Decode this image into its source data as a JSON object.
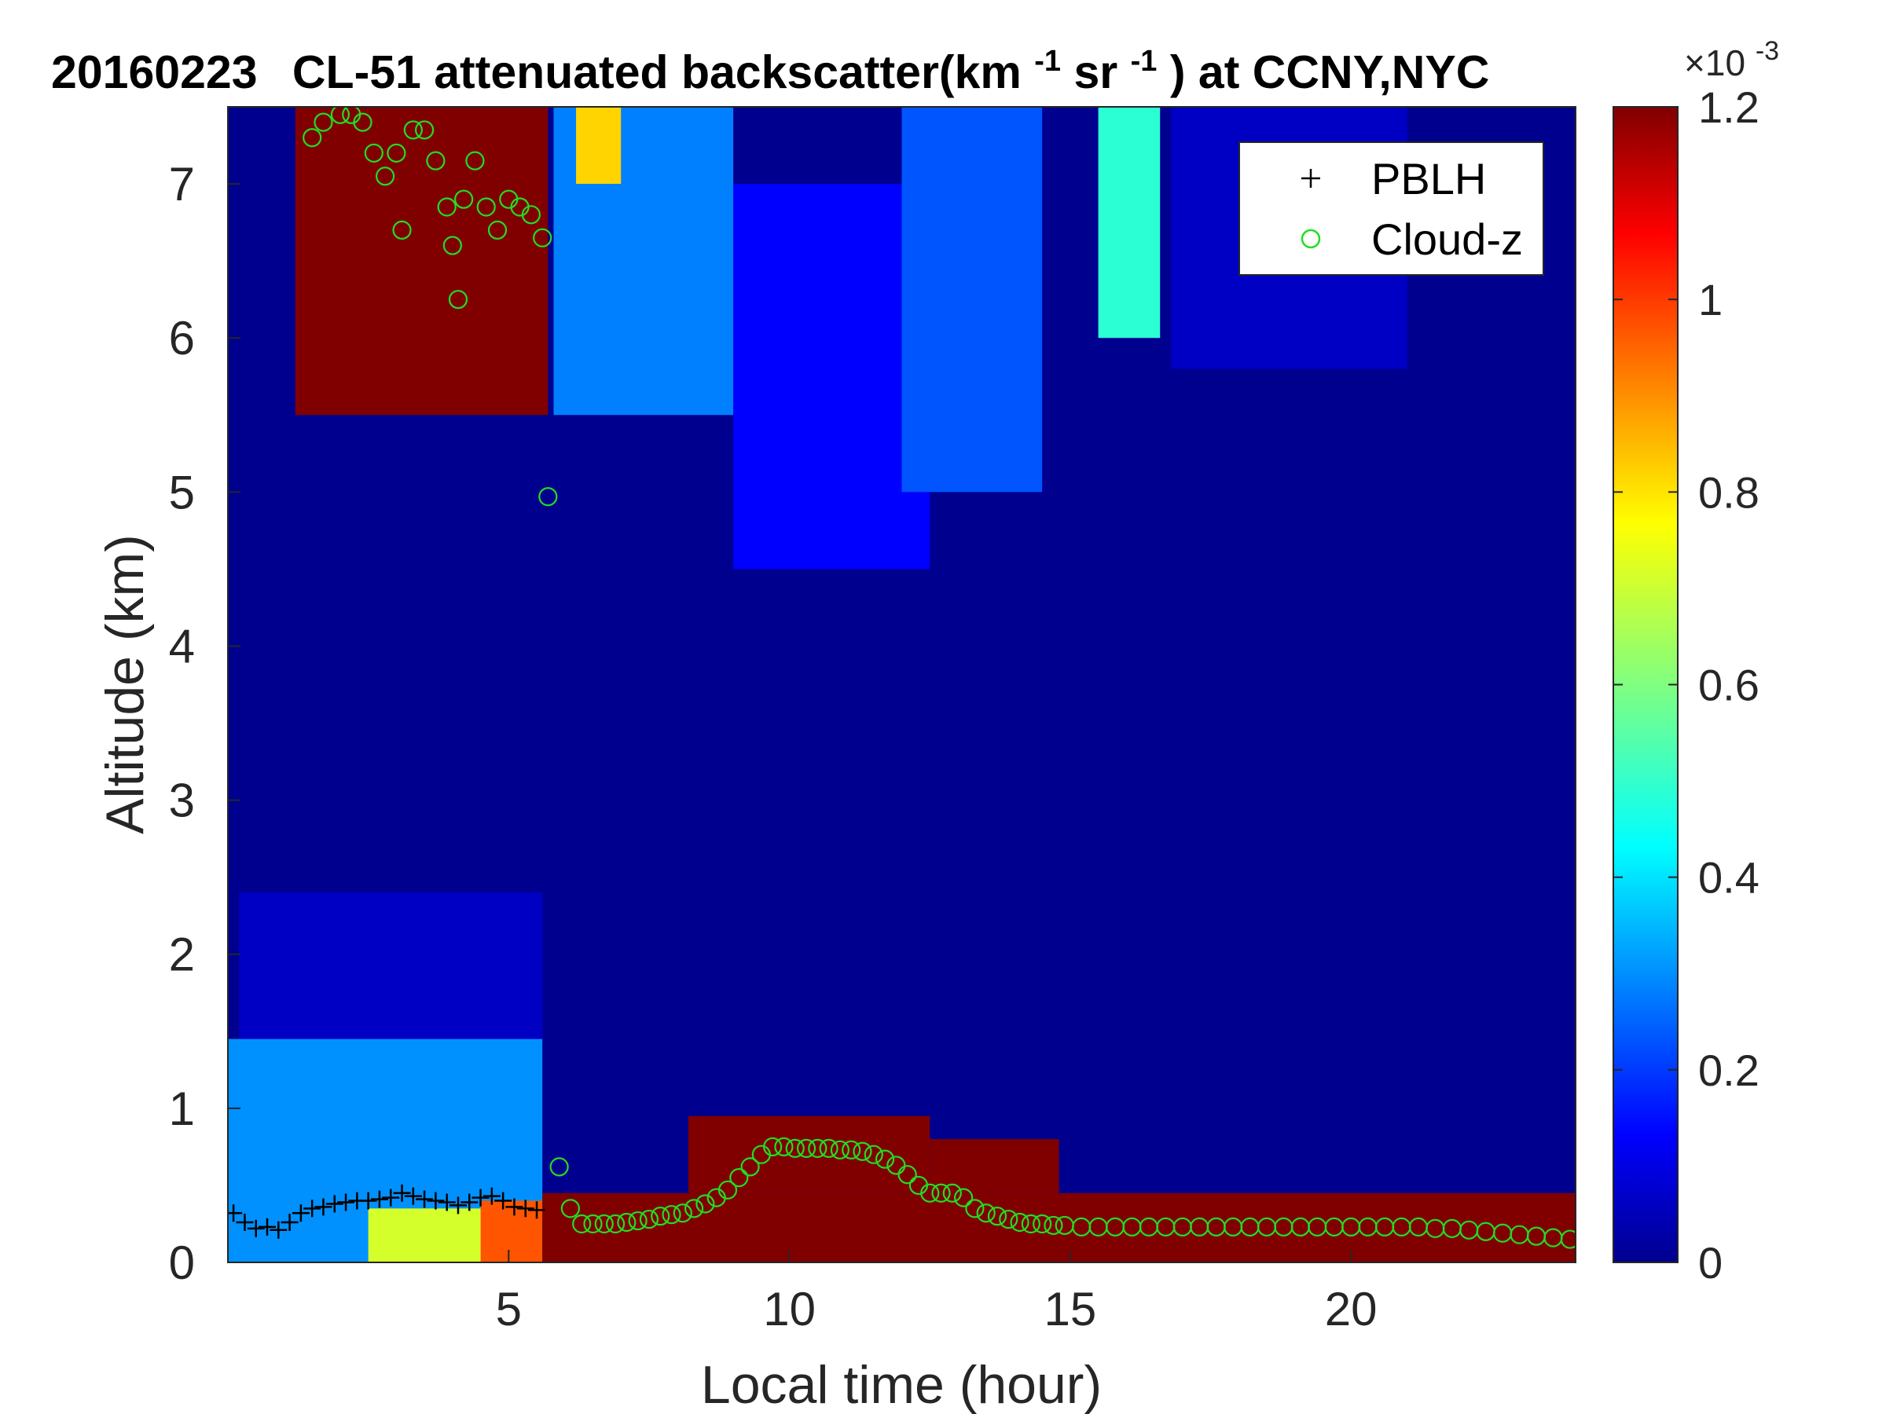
{
  "chart_data": {
    "type": "heatmap",
    "title": {
      "date": "20160223",
      "instrument": "CL-51 attenuated backscatter(km",
      "sup1": "-1",
      "mid": "sr",
      "sup2": "-1",
      "tail": ") at CCNY,NYC"
    },
    "xlabel": "Local time (hour)",
    "ylabel": "Altitude (km)",
    "xlim": [
      0,
      24
    ],
    "ylim": [
      0,
      7.5
    ],
    "xticks": [
      5,
      10,
      15,
      20
    ],
    "yticks": [
      0,
      1,
      2,
      3,
      4,
      5,
      6,
      7
    ],
    "colorbar": {
      "colormap": "jet",
      "range": [
        0,
        0.0012
      ],
      "ticks": [
        0,
        0.2,
        0.4,
        0.6,
        0.8,
        1,
        1.2
      ],
      "multiplier_base": "×10",
      "multiplier_exp": "-3"
    },
    "legend": {
      "position": "top-right",
      "entries": [
        "PBLH",
        "Cloud-z"
      ]
    },
    "colors": {
      "pblh_marker": "#000000",
      "cloudz_marker": "#22dd22"
    },
    "pblh": {
      "name": "PBLH",
      "x": [
        0.1,
        0.3,
        0.5,
        0.7,
        0.9,
        1.1,
        1.3,
        1.5,
        1.7,
        1.9,
        2.1,
        2.3,
        2.5,
        2.7,
        2.9,
        3.1,
        3.3,
        3.5,
        3.7,
        3.9,
        4.1,
        4.3,
        4.5,
        4.7,
        4.9,
        5.1,
        5.3,
        5.5
      ],
      "y": [
        0.32,
        0.26,
        0.22,
        0.23,
        0.21,
        0.26,
        0.32,
        0.35,
        0.36,
        0.38,
        0.39,
        0.4,
        0.4,
        0.41,
        0.42,
        0.45,
        0.43,
        0.41,
        0.4,
        0.39,
        0.37,
        0.39,
        0.42,
        0.43,
        0.4,
        0.36,
        0.35,
        0.34
      ]
    },
    "cloud_z": {
      "name": "Cloud-z",
      "x": [
        1.5,
        1.7,
        2.0,
        2.2,
        2.4,
        2.6,
        2.8,
        3.0,
        3.1,
        3.3,
        3.5,
        3.7,
        3.9,
        4.0,
        4.1,
        4.2,
        4.4,
        4.6,
        4.8,
        5.0,
        5.2,
        5.4,
        5.6,
        5.7,
        5.9,
        6.1,
        6.3,
        6.5,
        6.7,
        6.9,
        7.1,
        7.3,
        7.5,
        7.7,
        7.9,
        8.1,
        8.3,
        8.5,
        8.7,
        8.9,
        9.1,
        9.3,
        9.5,
        9.7,
        9.9,
        10.1,
        10.3,
        10.5,
        10.7,
        10.9,
        11.1,
        11.3,
        11.5,
        11.7,
        11.9,
        12.1,
        12.3,
        12.5,
        12.7,
        12.9,
        13.1,
        13.3,
        13.5,
        13.7,
        13.9,
        14.1,
        14.3,
        14.5,
        14.7,
        14.9,
        15.2,
        15.5,
        15.8,
        16.1,
        16.4,
        16.7,
        17.0,
        17.3,
        17.6,
        17.9,
        18.2,
        18.5,
        18.8,
        19.1,
        19.4,
        19.7,
        20.0,
        20.3,
        20.6,
        20.9,
        21.2,
        21.5,
        21.8,
        22.1,
        22.4,
        22.7,
        23.0,
        23.3,
        23.6,
        23.9
      ],
      "y": [
        7.3,
        7.4,
        7.45,
        7.45,
        7.4,
        7.2,
        7.05,
        7.2,
        6.7,
        7.35,
        7.35,
        7.15,
        6.85,
        6.6,
        6.25,
        6.9,
        7.15,
        6.85,
        6.7,
        6.9,
        6.85,
        6.8,
        6.65,
        4.97,
        0.62,
        0.35,
        0.25,
        0.25,
        0.25,
        0.25,
        0.26,
        0.27,
        0.28,
        0.3,
        0.31,
        0.32,
        0.35,
        0.38,
        0.42,
        0.47,
        0.55,
        0.62,
        0.7,
        0.75,
        0.75,
        0.74,
        0.74,
        0.74,
        0.74,
        0.73,
        0.73,
        0.72,
        0.7,
        0.67,
        0.63,
        0.57,
        0.5,
        0.45,
        0.45,
        0.45,
        0.42,
        0.35,
        0.32,
        0.3,
        0.28,
        0.26,
        0.25,
        0.25,
        0.24,
        0.24,
        0.23,
        0.23,
        0.23,
        0.23,
        0.23,
        0.23,
        0.23,
        0.23,
        0.23,
        0.23,
        0.23,
        0.23,
        0.23,
        0.23,
        0.23,
        0.23,
        0.23,
        0.23,
        0.23,
        0.23,
        0.23,
        0.22,
        0.22,
        0.21,
        0.2,
        0.19,
        0.18,
        0.17,
        0.16,
        0.15
      ]
    },
    "features": [
      {
        "t0": 0.0,
        "t1": 5.6,
        "z0": 0.0,
        "z1": 1.45,
        "v": 0.00032
      },
      {
        "t0": 0.2,
        "t1": 5.6,
        "z0": 1.45,
        "z1": 2.4,
        "v": 8e-05
      },
      {
        "t0": 2.5,
        "t1": 5.5,
        "z0": 0.0,
        "z1": 0.35,
        "v": 0.0007
      },
      {
        "t0": 4.5,
        "t1": 5.6,
        "z0": 0.0,
        "z1": 0.4,
        "v": 0.00095
      },
      {
        "t0": 5.6,
        "t1": 24.0,
        "z0": 0.0,
        "z1": 0.45,
        "v": 0.0012
      },
      {
        "t0": 8.2,
        "t1": 12.5,
        "z0": 0.45,
        "z1": 0.95,
        "v": 0.0012
      },
      {
        "t0": 12.5,
        "t1": 14.8,
        "z0": 0.45,
        "z1": 0.8,
        "v": 0.0012
      },
      {
        "t0": 1.2,
        "t1": 5.7,
        "z0": 5.5,
        "z1": 7.5,
        "v": 0.0012
      },
      {
        "t0": 5.8,
        "t1": 9.0,
        "z0": 5.5,
        "z1": 7.5,
        "v": 0.0003
      },
      {
        "t0": 9.0,
        "t1": 12.5,
        "z0": 4.5,
        "z1": 7.0,
        "v": 0.00015
      },
      {
        "t0": 12.0,
        "t1": 14.5,
        "z0": 5.0,
        "z1": 7.5,
        "v": 0.00025
      },
      {
        "t0": 15.5,
        "t1": 16.6,
        "z0": 6.0,
        "z1": 7.5,
        "v": 0.0005
      },
      {
        "t0": 6.2,
        "t1": 7.0,
        "z0": 7.0,
        "z1": 7.5,
        "v": 0.0008
      },
      {
        "t0": 16.8,
        "t1": 21.0,
        "z0": 5.8,
        "z1": 7.5,
        "v": 8e-05
      }
    ]
  }
}
